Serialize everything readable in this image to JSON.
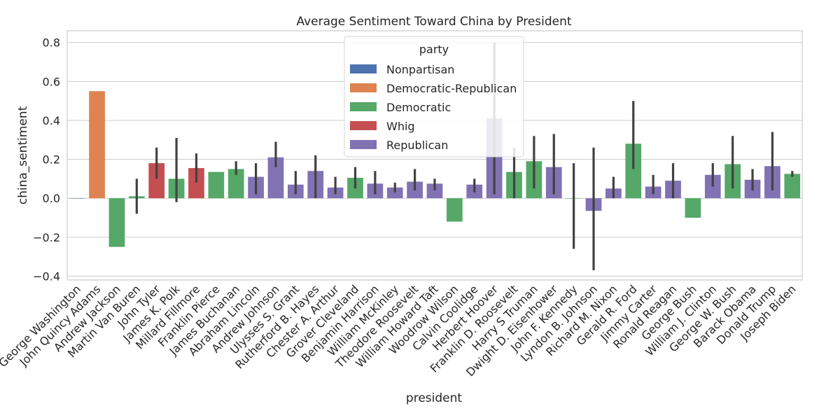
{
  "chart_data": {
    "type": "bar",
    "title": "Average Sentiment Toward China by President",
    "xlabel": "president",
    "ylabel": "china_sentiment",
    "ylim": [
      -0.42,
      0.86
    ],
    "yticks": [
      -0.4,
      -0.2,
      0.0,
      0.2,
      0.4,
      0.6,
      0.8
    ],
    "ytick_labels": [
      "−0.4",
      "−0.2",
      "0.0",
      "0.2",
      "0.4",
      "0.6",
      "0.8"
    ],
    "grid": true,
    "legend": {
      "title": "party",
      "placement": "upper-center",
      "entries": [
        {
          "name": "Nonpartisan",
          "color": "#4c72b0"
        },
        {
          "name": "Democratic-Republican",
          "color": "#dd8452"
        },
        {
          "name": "Democratic",
          "color": "#55a868"
        },
        {
          "name": "Whig",
          "color": "#c44e52"
        },
        {
          "name": "Republican",
          "color": "#8172b3"
        }
      ]
    },
    "error_bar_color": "#424242",
    "categories": [
      "George Washington",
      "John Quincy Adams",
      "Andrew Jackson",
      "Martin Van Buren",
      "John Tyler",
      "James K. Polk",
      "Millard Fillmore",
      "Franklin Pierce",
      "James Buchanan",
      "Abraham Lincoln",
      "Andrew Johnson",
      "Ulysses S. Grant",
      "Rutherford B. Hayes",
      "Chester A. Arthur",
      "Grover Cleveland",
      "Benjamin Harrison",
      "William McKinley",
      "Theodore Roosevelt",
      "William Howard Taft",
      "Woodrow Wilson",
      "Calvin Coolidge",
      "Herbert Hoover",
      "Franklin D. Roosevelt",
      "Harry S Truman",
      "Dwight D. Eisenhower",
      "John F. Kennedy",
      "Lyndon B. Johnson",
      "Richard M. Nixon",
      "Gerald R. Ford",
      "Jimmy Carter",
      "Ronald Reagan",
      "George Bush",
      "William J. Clinton",
      "George W. Bush",
      "Barack Obama",
      "Donald Trump",
      "Joseph Biden"
    ],
    "party": [
      "Nonpartisan",
      "Democratic-Republican",
      "Democratic",
      "Democratic",
      "Whig",
      "Democratic",
      "Whig",
      "Democratic",
      "Democratic",
      "Republican",
      "Republican",
      "Republican",
      "Republican",
      "Republican",
      "Democratic",
      "Republican",
      "Republican",
      "Republican",
      "Republican",
      "Democratic",
      "Republican",
      "Republican",
      "Democratic",
      "Democratic",
      "Republican",
      "Democratic",
      "Republican",
      "Republican",
      "Democratic",
      "Republican",
      "Republican",
      "Democratic",
      "Republican",
      "Democratic",
      "Republican",
      "Republican",
      "Democratic"
    ],
    "values": [
      0.0,
      0.55,
      -0.25,
      0.01,
      0.18,
      0.1,
      0.155,
      0.135,
      0.15,
      0.11,
      0.21,
      0.07,
      0.14,
      0.055,
      0.105,
      0.075,
      0.055,
      0.085,
      0.075,
      -0.12,
      0.07,
      0.41,
      0.135,
      0.19,
      0.16,
      0.0,
      -0.065,
      0.05,
      0.28,
      0.06,
      0.09,
      -0.1,
      0.12,
      0.175,
      0.095,
      0.165,
      0.125
    ],
    "ci": [
      null,
      null,
      null,
      [
        -0.08,
        0.1
      ],
      [
        0.1,
        0.26
      ],
      [
        -0.02,
        0.31
      ],
      [
        0.08,
        0.23
      ],
      null,
      [
        0.12,
        0.19
      ],
      [
        0.02,
        0.18
      ],
      [
        0.16,
        0.29
      ],
      [
        0.02,
        0.14
      ],
      [
        0.0,
        0.22
      ],
      [
        0.02,
        0.11
      ],
      [
        0.05,
        0.16
      ],
      [
        0.02,
        0.14
      ],
      [
        0.03,
        0.08
      ],
      [
        0.04,
        0.15
      ],
      [
        0.04,
        0.1
      ],
      null,
      [
        0.03,
        0.1
      ],
      [
        0.02,
        0.8
      ],
      [
        0.0,
        0.26
      ],
      [
        0.05,
        0.32
      ],
      [
        0.02,
        0.33
      ],
      [
        -0.26,
        0.18
      ],
      [
        -0.37,
        0.26
      ],
      [
        0.0,
        0.11
      ],
      [
        0.15,
        0.5
      ],
      [
        0.02,
        0.12
      ],
      [
        0.0,
        0.18
      ],
      null,
      [
        0.06,
        0.18
      ],
      [
        0.05,
        0.32
      ],
      [
        0.04,
        0.15
      ],
      [
        0.04,
        0.34
      ],
      [
        0.11,
        0.14
      ]
    ]
  }
}
